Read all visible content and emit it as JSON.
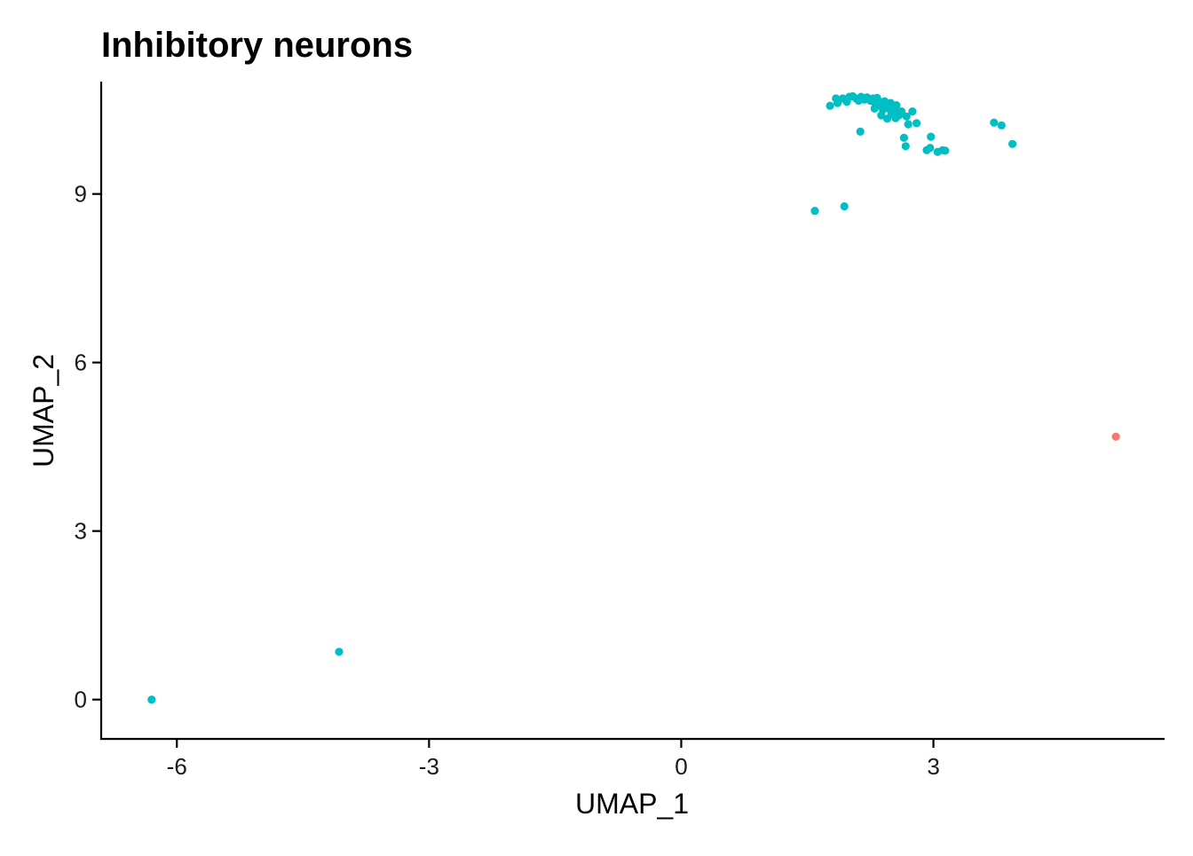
{
  "chart_data": {
    "type": "scatter",
    "title": "Inhibitory neurons",
    "xlabel": "UMAP_1",
    "ylabel": "UMAP_2",
    "xlim": [
      -6.9,
      5.75
    ],
    "ylim": [
      -0.7,
      11.0
    ],
    "x_ticks": [
      -6,
      -3,
      0,
      3
    ],
    "y_ticks": [
      0,
      3,
      6,
      9
    ],
    "x_tick_labels": [
      "-6",
      "-3",
      "0",
      "3"
    ],
    "y_tick_labels": [
      "0",
      "3",
      "6",
      "9"
    ],
    "grid": false,
    "legend": "none",
    "series": [
      {
        "color": "#00BFC4",
        "points": [
          [
            -6.3,
            0.0
          ],
          [
            -4.07,
            0.85
          ],
          [
            1.59,
            8.7
          ],
          [
            1.94,
            8.78
          ],
          [
            1.77,
            10.57
          ],
          [
            1.84,
            10.7
          ],
          [
            1.86,
            10.62
          ],
          [
            1.92,
            10.7
          ],
          [
            1.97,
            10.64
          ],
          [
            2.0,
            10.73
          ],
          [
            2.04,
            10.74
          ],
          [
            2.08,
            10.7
          ],
          [
            2.11,
            10.66
          ],
          [
            2.14,
            10.73
          ],
          [
            2.18,
            10.68
          ],
          [
            2.21,
            10.72
          ],
          [
            2.25,
            10.66
          ],
          [
            2.28,
            10.7
          ],
          [
            2.31,
            10.6
          ],
          [
            2.33,
            10.71
          ],
          [
            2.36,
            10.58
          ],
          [
            2.38,
            10.63
          ],
          [
            2.4,
            10.5
          ],
          [
            2.42,
            10.65
          ],
          [
            2.45,
            10.58
          ],
          [
            2.47,
            10.52
          ],
          [
            2.49,
            10.62
          ],
          [
            2.5,
            10.43
          ],
          [
            2.52,
            10.55
          ],
          [
            2.54,
            10.48
          ],
          [
            2.56,
            10.58
          ],
          [
            2.59,
            10.4
          ],
          [
            2.62,
            10.47
          ],
          [
            2.3,
            10.52
          ],
          [
            2.38,
            10.4
          ],
          [
            2.45,
            10.34
          ],
          [
            2.55,
            10.35
          ],
          [
            2.68,
            10.38
          ],
          [
            2.7,
            10.24
          ],
          [
            2.75,
            10.47
          ],
          [
            2.8,
            10.26
          ],
          [
            2.65,
            10.0
          ],
          [
            2.67,
            9.85
          ],
          [
            2.13,
            10.11
          ],
          [
            2.92,
            9.78
          ],
          [
            2.96,
            9.82
          ],
          [
            2.97,
            10.02
          ],
          [
            3.05,
            9.75
          ],
          [
            3.11,
            9.78
          ],
          [
            3.14,
            9.77
          ],
          [
            3.72,
            10.27
          ],
          [
            3.81,
            10.22
          ],
          [
            3.94,
            9.89
          ]
        ]
      },
      {
        "color": "#F8766D",
        "points": [
          [
            5.17,
            4.68
          ]
        ]
      }
    ]
  }
}
